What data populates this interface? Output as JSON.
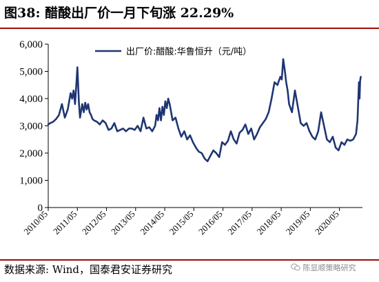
{
  "title": "图38: 醋酸出厂价一月下旬涨 22.29%",
  "source": "数据来源: Wind，国泰君安证券研究",
  "watermark": "陈显顺策略研究",
  "chart_data": {
    "type": "line",
    "title": "图38: 醋酸出厂价一月下旬涨 22.29%",
    "xlabel": "",
    "ylabel": "",
    "ylim": [
      0,
      6000
    ],
    "yticks": [
      0,
      1000,
      2000,
      3000,
      4000,
      5000,
      6000
    ],
    "ytick_labels": [
      "0",
      "1,000",
      "2,000",
      "3,000",
      "4,000",
      "5,000",
      "6,000"
    ],
    "xlim": [
      "2010-05",
      "2021-02"
    ],
    "xtick_labels": [
      "2010/05",
      "2011/05",
      "2012/05",
      "2013/05",
      "2014/05",
      "2015/05",
      "2016/05",
      "2017/05",
      "2018/05",
      "2019/05",
      "2020/05"
    ],
    "grid": false,
    "legend": "top-center",
    "series": [
      {
        "name": "出厂价:醋酸:华鲁恒升（元/吨）",
        "color": "#1f3572",
        "x": [
          2010.33,
          2010.4,
          2010.5,
          2010.6,
          2010.7,
          2010.8,
          2010.9,
          2011.0,
          2011.05,
          2011.1,
          2011.15,
          2011.2,
          2011.25,
          2011.3,
          2011.33,
          2011.35,
          2011.38,
          2011.42,
          2011.5,
          2011.55,
          2011.6,
          2011.65,
          2011.7,
          2011.75,
          2011.8,
          2011.85,
          2011.9,
          2012.0,
          2012.1,
          2012.2,
          2012.3,
          2012.4,
          2012.5,
          2012.6,
          2012.7,
          2012.8,
          2012.9,
          2013.0,
          2013.1,
          2013.2,
          2013.3,
          2013.4,
          2013.5,
          2013.6,
          2013.7,
          2013.8,
          2013.9,
          2014.0,
          2014.05,
          2014.1,
          2014.15,
          2014.2,
          2014.25,
          2014.3,
          2014.35,
          2014.4,
          2014.45,
          2014.5,
          2014.6,
          2014.7,
          2014.8,
          2014.9,
          2015.0,
          2015.1,
          2015.2,
          2015.3,
          2015.4,
          2015.5,
          2015.6,
          2015.7,
          2015.8,
          2015.9,
          2016.0,
          2016.1,
          2016.2,
          2016.3,
          2016.4,
          2016.5,
          2016.6,
          2016.7,
          2016.8,
          2016.9,
          2017.0,
          2017.1,
          2017.2,
          2017.3,
          2017.4,
          2017.5,
          2017.6,
          2017.7,
          2017.8,
          2017.9,
          2018.0,
          2018.1,
          2018.2,
          2018.3,
          2018.35,
          2018.4,
          2018.45,
          2018.5,
          2018.55,
          2018.6,
          2018.7,
          2018.8,
          2018.9,
          2019.0,
          2019.1,
          2019.2,
          2019.3,
          2019.4,
          2019.5,
          2019.6,
          2019.7,
          2019.8,
          2019.9,
          2020.0,
          2020.1,
          2020.2,
          2020.3,
          2020.4,
          2020.5,
          2020.6,
          2020.7,
          2020.8,
          2020.9,
          2020.95,
          2021.0,
          2021.02,
          2021.04,
          2021.06
        ],
        "y": [
          3050,
          3100,
          3150,
          3250,
          3400,
          3800,
          3300,
          3600,
          3900,
          4200,
          4000,
          4300,
          3800,
          4600,
          5150,
          4700,
          3900,
          3300,
          3800,
          3500,
          3850,
          3600,
          3800,
          3500,
          3400,
          3250,
          3200,
          3150,
          3050,
          3200,
          3100,
          2850,
          2900,
          3100,
          2800,
          2850,
          2900,
          2800,
          2900,
          2900,
          2850,
          3000,
          2800,
          3300,
          2900,
          2950,
          2800,
          3000,
          3400,
          3200,
          3650,
          3200,
          3700,
          3400,
          3900,
          3650,
          4000,
          3800,
          3200,
          3300,
          2900,
          2600,
          2800,
          2500,
          2650,
          2400,
          2200,
          2050,
          2000,
          1800,
          1700,
          1900,
          2100,
          2000,
          1850,
          2400,
          2300,
          2450,
          2800,
          2500,
          2350,
          2750,
          2850,
          3050,
          2700,
          2900,
          2500,
          2700,
          2950,
          3100,
          3250,
          3500,
          4000,
          4600,
          4500,
          4800,
          4700,
          5450,
          5050,
          4600,
          4300,
          3800,
          3500,
          4300,
          3700,
          3100,
          3000,
          3100,
          2800,
          2600,
          2500,
          2800,
          3500,
          3000,
          2500,
          2400,
          2600,
          2200,
          2100,
          2400,
          2300,
          2500,
          2450,
          2500,
          2700,
          3200,
          4600,
          4000,
          4650,
          4800
        ]
      }
    ]
  }
}
